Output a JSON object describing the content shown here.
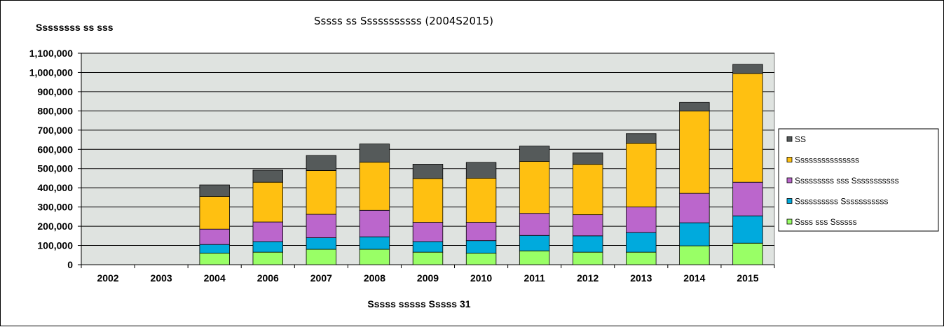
{
  "chart_data": {
    "type": "bar",
    "stacked": true,
    "title": "Sssss ss Sssssssssss (2004S2015)",
    "ylabel": "Ssssssss ss sss",
    "xlabel": "Sssss sssss Sssss 31",
    "ylim": [
      0,
      1100000
    ],
    "yticks": [
      "0",
      "100,000",
      "200,000",
      "300,000",
      "400,000",
      "500,000",
      "600,000",
      "700,000",
      "800,000",
      "900,000",
      "1,000,000",
      "1,100,000"
    ],
    "ytick_values": [
      0,
      100000,
      200000,
      300000,
      400000,
      500000,
      600000,
      700000,
      800000,
      900000,
      1000000,
      1100000
    ],
    "categories": [
      "2002",
      "2003",
      "2004",
      "2006",
      "2007",
      "2008",
      "2009",
      "2010",
      "2011",
      "2012",
      "2013",
      "2014",
      "2015"
    ],
    "grid": true,
    "legend_position": "right",
    "plot_background": "#dfe3e0",
    "series": [
      {
        "name": "Ssss sss Ssssss",
        "color": "#99ff66",
        "values": [
          0,
          0,
          60000,
          65000,
          80000,
          80000,
          65000,
          60000,
          72000,
          65000,
          65000,
          98000,
          112000
        ]
      },
      {
        "name": "Ssssssssss Sssssssssss",
        "color": "#00aadd",
        "values": [
          0,
          0,
          45000,
          55000,
          60000,
          65000,
          55000,
          65000,
          80000,
          85000,
          102000,
          120000,
          142000
        ]
      },
      {
        "name": "Sssssssss sss Sssssssssss",
        "color": "#bb66cc",
        "values": [
          0,
          0,
          80000,
          102000,
          122000,
          138000,
          100000,
          95000,
          115000,
          110000,
          133000,
          153000,
          175000
        ]
      },
      {
        "name": "Sssssssssssssss",
        "color": "#ffc011",
        "values": [
          0,
          0,
          170000,
          207000,
          228000,
          250000,
          228000,
          230000,
          270000,
          262000,
          332000,
          428000,
          565000
        ]
      },
      {
        "name": "SS",
        "color": "#555a5a",
        "values": [
          0,
          0,
          60000,
          63000,
          78000,
          95000,
          75000,
          82000,
          80000,
          60000,
          50000,
          45000,
          48000
        ]
      }
    ]
  }
}
